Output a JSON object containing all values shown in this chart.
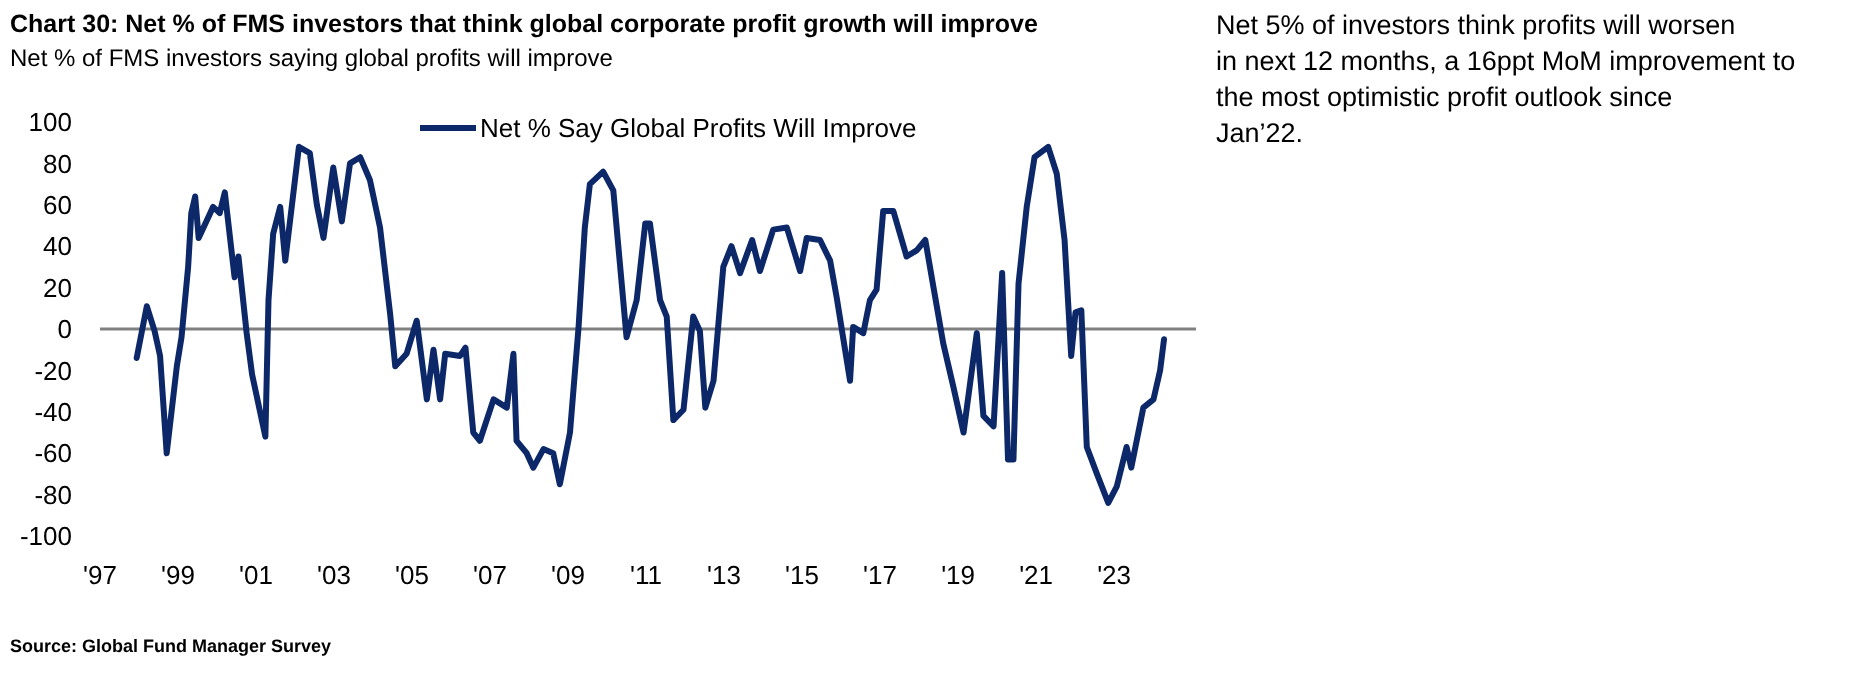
{
  "chart_data": {
    "type": "line",
    "title": "Chart 30: Net % of FMS investors that think global corporate profit growth will improve",
    "subtitle": "Net % of FMS investors saying global profits will improve",
    "annotations": [
      "Net 5% of investors think profits will worsen in next 12 months, a 16ppt MoM improvement to the most optimistic profit outlook since Jan’22.",
      "Source: Global Fund Manager Survey"
    ],
    "xlim": [
      1997,
      2025.1
    ],
    "xticks": [
      {
        "value": 1997,
        "label": "'97"
      },
      {
        "value": 1999,
        "label": "'99"
      },
      {
        "value": 2001,
        "label": "'01"
      },
      {
        "value": 2003,
        "label": "'03"
      },
      {
        "value": 2005,
        "label": "'05"
      },
      {
        "value": 2007,
        "label": "'07"
      },
      {
        "value": 2009,
        "label": "'09"
      },
      {
        "value": 2011,
        "label": "'11"
      },
      {
        "value": 2013,
        "label": "'13"
      },
      {
        "value": 2015,
        "label": "'15"
      },
      {
        "value": 2017,
        "label": "'17"
      },
      {
        "value": 2019,
        "label": "'19"
      },
      {
        "value": 2021,
        "label": "'21"
      },
      {
        "value": 2023,
        "label": "'23"
      }
    ],
    "ylim": [
      -100,
      100
    ],
    "yticks": [
      -100,
      -80,
      -60,
      -40,
      -20,
      0,
      20,
      40,
      60,
      80,
      100
    ],
    "grid": false,
    "legend": "top",
    "marker": "none",
    "line_style": "solid",
    "ref_lines": [
      {
        "axis": "y",
        "value": 0,
        "color": "#808080"
      }
    ],
    "series": [
      {
        "name": "Net % Say Global Profits Will Improve",
        "color": "#0c2869",
        "x": [
          1997.94,
          1998.2,
          1998.4,
          1998.54,
          1998.71,
          1998.97,
          1999.09,
          1999.26,
          1999.34,
          1999.44,
          1999.53,
          1999.9,
          2000.07,
          2000.2,
          2000.45,
          2000.55,
          2000.76,
          2000.9,
          2001.24,
          2001.32,
          2001.44,
          2001.62,
          2001.75,
          2002.1,
          2002.38,
          2002.56,
          2002.73,
          2002.98,
          2003.2,
          2003.41,
          2003.67,
          2003.92,
          2004.18,
          2004.44,
          2004.57,
          2004.86,
          2005.12,
          2005.38,
          2005.55,
          2005.72,
          2005.85,
          2006.23,
          2006.37,
          2006.57,
          2006.74,
          2007.09,
          2007.43,
          2007.6,
          2007.68,
          2007.94,
          2008.11,
          2008.37,
          2008.62,
          2008.79,
          2009.05,
          2009.27,
          2009.43,
          2009.56,
          2009.9,
          2010.16,
          2010.5,
          2010.76,
          2010.98,
          2011.1,
          2011.36,
          2011.53,
          2011.7,
          2011.96,
          2012.21,
          2012.38,
          2012.52,
          2012.73,
          2012.98,
          2013.19,
          2013.41,
          2013.72,
          2013.92,
          2014.26,
          2014.61,
          2014.95,
          2015.12,
          2015.46,
          2015.72,
          2015.89,
          2016.23,
          2016.31,
          2016.57,
          2016.74,
          2016.91,
          2017.08,
          2017.34,
          2017.68,
          2017.94,
          2018.16,
          2018.37,
          2018.62,
          2018.88,
          2019.14,
          2019.48,
          2019.65,
          2019.91,
          2020.13,
          2020.28,
          2020.42,
          2020.55,
          2020.76,
          2020.96,
          2021.31,
          2021.53,
          2021.73,
          2021.9,
          2022.01,
          2022.16,
          2022.3,
          2022.56,
          2022.85,
          2023.07,
          2023.32,
          2023.44,
          2023.75,
          2024.01,
          2024.18,
          2024.28
        ],
        "values": [
          -14,
          11,
          -1,
          -13,
          -60,
          -18,
          -4,
          30,
          56,
          64,
          44,
          59,
          56,
          66,
          25,
          35,
          -2,
          -22,
          -52,
          14,
          46,
          59,
          33,
          88,
          85,
          60,
          44,
          78,
          52,
          80,
          83,
          72,
          49,
          7,
          -18,
          -12,
          4,
          -34,
          -10,
          -34,
          -12,
          -13,
          -9,
          -50,
          -54,
          -34,
          -38,
          -12,
          -54,
          -60,
          -67,
          -58,
          -60,
          -75,
          -50,
          1,
          49,
          70,
          76,
          67,
          -4,
          14,
          51,
          51,
          14,
          6,
          -44,
          -39,
          6,
          -1,
          -38,
          -25,
          30,
          40,
          27,
          43,
          28,
          48,
          49,
          28,
          44,
          43,
          33,
          15,
          -25,
          1,
          -2,
          14,
          19,
          57,
          57,
          35,
          38,
          43,
          20,
          -7,
          -28,
          -50,
          -2,
          -42,
          -47,
          27,
          -63,
          -63,
          22,
          59,
          83,
          88,
          75,
          43,
          -13,
          8,
          9,
          -57,
          -70,
          -84,
          -76,
          -57,
          -67,
          -38,
          -34,
          -20,
          -5
        ]
      }
    ]
  }
}
